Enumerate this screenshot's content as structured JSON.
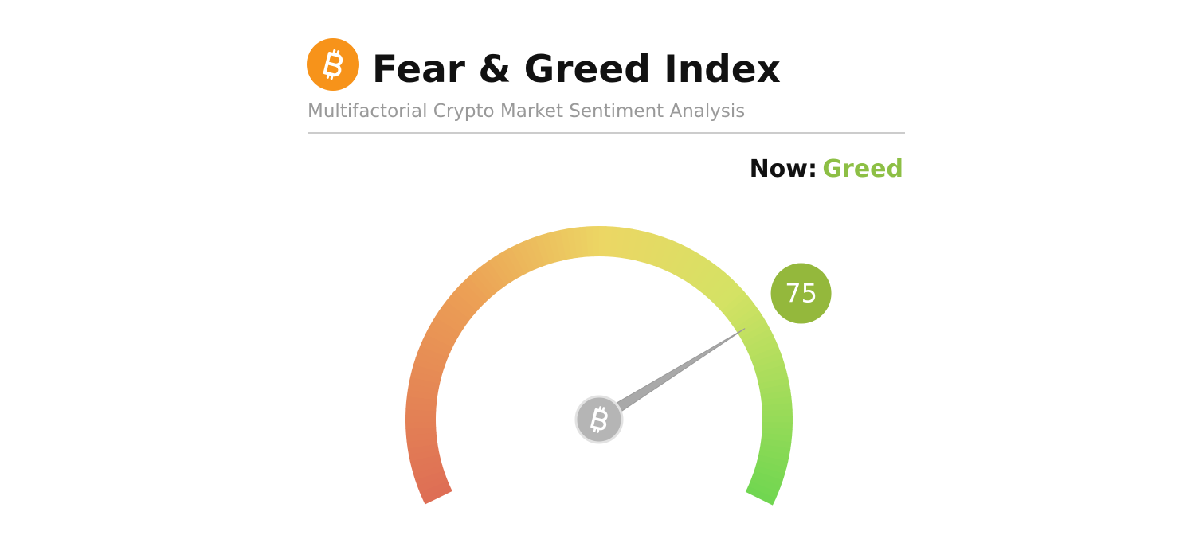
{
  "chart_data": {
    "type": "gauge",
    "title": "Fear & Greed Index",
    "subtitle": "Multifactorial Crypto Market Sentiment Analysis",
    "label": "Now:",
    "classification": "Greed",
    "classification_color": "#8dbf45",
    "value": 75,
    "color": "#94b83c",
    "ylim": [
      0,
      100
    ]
  }
}
